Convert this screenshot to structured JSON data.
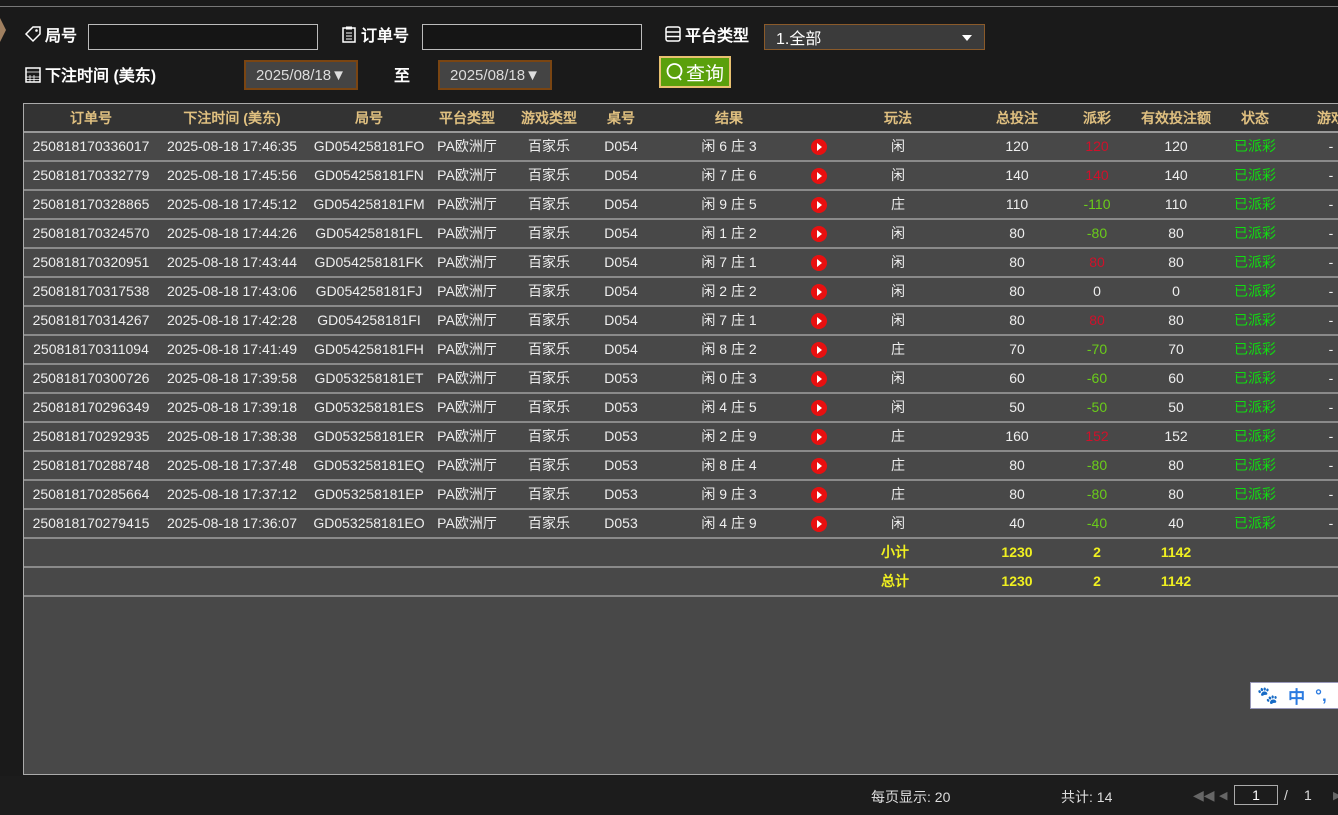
{
  "filters": {
    "round_label": "局号",
    "round_value": "",
    "order_label": "订单号",
    "order_value": "",
    "platform_label": "平台类型",
    "platform_selected": "1.全部",
    "time_label": "下注时间 (美东)",
    "date_from": "2025/08/18▼",
    "to_label": "至",
    "date_to": "2025/08/18▼",
    "query_label": "查询"
  },
  "table": {
    "headers": [
      "订单号",
      "下注时间 (美东)",
      "局号",
      "平台类型",
      "游戏类型",
      "桌号",
      "结果",
      "玩法",
      "总投注",
      "派彩",
      "有效投注额",
      "状态",
      "游戏"
    ],
    "rows": [
      [
        "250818170336017",
        "2025-08-18 17:46:35",
        "GD054258181FO",
        "PA欧洲厅",
        "百家乐",
        "D054",
        "闲 6 庄 3",
        "闲",
        "120",
        "120",
        "120",
        "已派彩",
        "-"
      ],
      [
        "250818170332779",
        "2025-08-18 17:45:56",
        "GD054258181FN",
        "PA欧洲厅",
        "百家乐",
        "D054",
        "闲 7 庄 6",
        "闲",
        "140",
        "140",
        "140",
        "已派彩",
        "-"
      ],
      [
        "250818170328865",
        "2025-08-18 17:45:12",
        "GD054258181FM",
        "PA欧洲厅",
        "百家乐",
        "D054",
        "闲 9 庄 5",
        "庄",
        "110",
        "-110",
        "110",
        "已派彩",
        "-"
      ],
      [
        "250818170324570",
        "2025-08-18 17:44:26",
        "GD054258181FL",
        "PA欧洲厅",
        "百家乐",
        "D054",
        "闲 1 庄 2",
        "闲",
        "80",
        "-80",
        "80",
        "已派彩",
        "-"
      ],
      [
        "250818170320951",
        "2025-08-18 17:43:44",
        "GD054258181FK",
        "PA欧洲厅",
        "百家乐",
        "D054",
        "闲 7 庄 1",
        "闲",
        "80",
        "80",
        "80",
        "已派彩",
        "-"
      ],
      [
        "250818170317538",
        "2025-08-18 17:43:06",
        "GD054258181FJ",
        "PA欧洲厅",
        "百家乐",
        "D054",
        "闲 2 庄 2",
        "闲",
        "80",
        "0",
        "0",
        "已派彩",
        "-"
      ],
      [
        "250818170314267",
        "2025-08-18 17:42:28",
        "GD054258181FI",
        "PA欧洲厅",
        "百家乐",
        "D054",
        "闲 7 庄 1",
        "闲",
        "80",
        "80",
        "80",
        "已派彩",
        "-"
      ],
      [
        "250818170311094",
        "2025-08-18 17:41:49",
        "GD054258181FH",
        "PA欧洲厅",
        "百家乐",
        "D054",
        "闲 8 庄 2",
        "庄",
        "70",
        "-70",
        "70",
        "已派彩",
        "-"
      ],
      [
        "250818170300726",
        "2025-08-18 17:39:58",
        "GD053258181ET",
        "PA欧洲厅",
        "百家乐",
        "D053",
        "闲 0 庄 3",
        "闲",
        "60",
        "-60",
        "60",
        "已派彩",
        "-"
      ],
      [
        "250818170296349",
        "2025-08-18 17:39:18",
        "GD053258181ES",
        "PA欧洲厅",
        "百家乐",
        "D053",
        "闲 4 庄 5",
        "闲",
        "50",
        "-50",
        "50",
        "已派彩",
        "-"
      ],
      [
        "250818170292935",
        "2025-08-18 17:38:38",
        "GD053258181ER",
        "PA欧洲厅",
        "百家乐",
        "D053",
        "闲 2 庄 9",
        "庄",
        "160",
        "152",
        "152",
        "已派彩",
        "-"
      ],
      [
        "250818170288748",
        "2025-08-18 17:37:48",
        "GD053258181EQ",
        "PA欧洲厅",
        "百家乐",
        "D053",
        "闲 8 庄 4",
        "庄",
        "80",
        "-80",
        "80",
        "已派彩",
        "-"
      ],
      [
        "250818170285664",
        "2025-08-18 17:37:12",
        "GD053258181EP",
        "PA欧洲厅",
        "百家乐",
        "D053",
        "闲 9 庄 3",
        "庄",
        "80",
        "-80",
        "80",
        "已派彩",
        "-"
      ],
      [
        "250818170279415",
        "2025-08-18 17:36:07",
        "GD053258181EO",
        "PA欧洲厅",
        "百家乐",
        "D053",
        "闲 4 庄 9",
        "闲",
        "40",
        "-40",
        "40",
        "已派彩",
        "-"
      ]
    ],
    "subtotal": {
      "label": "小计",
      "total": "1230",
      "payout": "2",
      "valid": "1142"
    },
    "grandtotal": {
      "label": "总计",
      "total": "1230",
      "payout": "2",
      "valid": "1142"
    }
  },
  "colors": {
    "header_text": "#e0c080",
    "payout_positive": "#d0102a",
    "payout_negative": "#6acc1a",
    "status": "#10dd10",
    "totals": "#f0f020"
  },
  "footer": {
    "per_page": "每页显示: 20",
    "total": "共计: 14",
    "page": "1",
    "sep": "/",
    "pages": "1"
  },
  "ime": {
    "lang": "中",
    "punct": "°,"
  }
}
